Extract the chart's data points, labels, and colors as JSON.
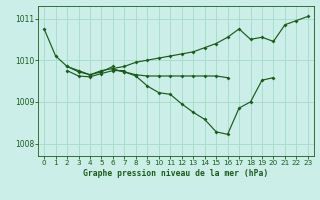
{
  "title": "Graphe pression niveau de la mer (hPa)",
  "bg_color": "#cceee8",
  "grid_color": "#aaddcc",
  "line_color": "#1a5c1a",
  "xlim": [
    -0.5,
    23.5
  ],
  "ylim": [
    1007.7,
    1011.3
  ],
  "yticks": [
    1008,
    1009,
    1010,
    1011
  ],
  "xticks": [
    0,
    1,
    2,
    3,
    4,
    5,
    6,
    7,
    8,
    9,
    10,
    11,
    12,
    13,
    14,
    15,
    16,
    17,
    18,
    19,
    20,
    21,
    22,
    23
  ],
  "series": [
    {
      "x": [
        0,
        1,
        2,
        3,
        4,
        5,
        6,
        7,
        8,
        9,
        10,
        11,
        12,
        13,
        14,
        15,
        16,
        17,
        18,
        19,
        20,
        21,
        22,
        23
      ],
      "y": [
        1010.75,
        1010.1,
        1009.85,
        1009.75,
        1009.65,
        1009.75,
        1009.8,
        1009.85,
        1009.95,
        1010.0,
        1010.05,
        1010.1,
        1010.15,
        1010.2,
        1010.3,
        1010.4,
        1010.55,
        1010.75,
        1010.5,
        1010.55,
        1010.45,
        1010.85,
        1010.95,
        1011.05
      ]
    },
    {
      "x": [
        2,
        3,
        4,
        5,
        6
      ],
      "y": [
        1009.85,
        1009.72,
        1009.65,
        1009.72,
        1009.85
      ]
    },
    {
      "x": [
        2,
        3,
        4,
        5,
        6,
        7
      ],
      "y": [
        1009.75,
        1009.62,
        1009.6,
        1009.68,
        1009.75,
        1009.75
      ]
    },
    {
      "x": [
        6,
        7,
        8,
        9,
        10,
        11,
        12,
        13,
        14,
        15,
        16,
        17,
        18,
        19,
        20
      ],
      "y": [
        1009.78,
        1009.72,
        1009.62,
        1009.38,
        1009.22,
        1009.18,
        1008.95,
        1008.75,
        1008.58,
        1008.28,
        1008.22,
        1008.85,
        1009.0,
        1009.52,
        1009.58
      ]
    },
    {
      "x": [
        6,
        7,
        8,
        9,
        10,
        11,
        12,
        13,
        14,
        15,
        16
      ],
      "y": [
        1009.78,
        1009.72,
        1009.65,
        1009.62,
        1009.62,
        1009.62,
        1009.62,
        1009.62,
        1009.62,
        1009.62,
        1009.58
      ]
    }
  ]
}
